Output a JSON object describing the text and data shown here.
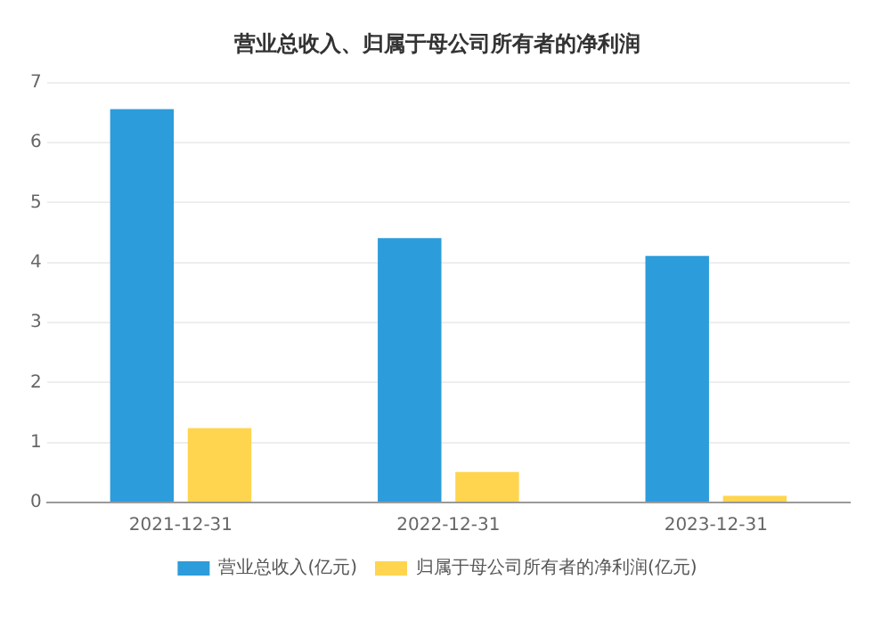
{
  "chart_data": {
    "type": "bar",
    "title": "营业总收入、归属于母公司所有者的净利润",
    "categories": [
      "2021-12-31",
      "2022-12-31",
      "2023-12-31"
    ],
    "series": [
      {
        "name": "营业总收入(亿元)",
        "color": "#2d9cdb",
        "values": [
          6.56,
          4.41,
          4.11
        ]
      },
      {
        "name": "归属于母公司所有者的净利润(亿元)",
        "color": "#ffd54f",
        "values": [
          1.24,
          0.51,
          0.11
        ]
      }
    ],
    "ylim": [
      0,
      7
    ],
    "yticks": [
      0,
      1,
      2,
      3,
      4,
      5,
      6,
      7
    ],
    "grid": "y",
    "legend": "bottom"
  }
}
